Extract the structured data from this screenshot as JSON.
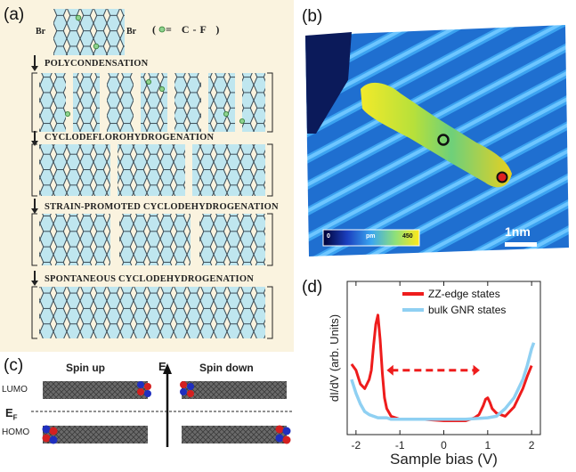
{
  "panel_a": {
    "label": "(a)",
    "br_left": "Br",
    "br_right": "Br",
    "legend": "( = C-F )",
    "steps": [
      "POLYCONDENSATION",
      "CYCLODEFLOROHYDROGENATION",
      "STRAIN-PROMOTED CYCLODEHYDROGENATION",
      "SPONTANEOUS CYCLODEHYDROGENATION"
    ]
  },
  "panel_b": {
    "label": "(b)",
    "colorbar_min": "0",
    "colorbar_unit": "pm",
    "colorbar_max": "450",
    "scalebar": "1nm"
  },
  "panel_c": {
    "label": "(c)",
    "spin_up": "Spin up",
    "spin_down": "Spin down",
    "energy_axis": "E",
    "lumo": "LUMO",
    "fermi": "E",
    "fermi_sub": "F",
    "homo": "HOMO"
  },
  "panel_d": {
    "label": "(d)"
  },
  "chart_data": {
    "type": "line",
    "xlabel": "Sample bias (V)",
    "ylabel": "dI/dV (arb. Units)",
    "xlim": [
      -2.2,
      2.2
    ],
    "ylim": [
      0,
      1
    ],
    "xticks": [
      -2,
      -1,
      0,
      1,
      2
    ],
    "xtick_labels": [
      "-2",
      "-1",
      "0",
      "1",
      "2"
    ],
    "legend_position": "top-right",
    "series": [
      {
        "name": "ZZ-edge states",
        "color": "#ee1c1c",
        "x": [
          -2.1,
          -2.0,
          -1.9,
          -1.8,
          -1.7,
          -1.65,
          -1.6,
          -1.55,
          -1.5,
          -1.45,
          -1.4,
          -1.35,
          -1.3,
          -1.2,
          -1.0,
          -0.8,
          -0.5,
          0.0,
          0.5,
          0.7,
          0.8,
          0.9,
          0.95,
          1.0,
          1.05,
          1.1,
          1.2,
          1.4,
          1.6,
          1.8,
          1.9,
          2.0
        ],
        "y": [
          0.46,
          0.42,
          0.33,
          0.3,
          0.36,
          0.42,
          0.58,
          0.72,
          0.78,
          0.62,
          0.4,
          0.24,
          0.17,
          0.12,
          0.1,
          0.1,
          0.1,
          0.09,
          0.09,
          0.11,
          0.13,
          0.19,
          0.23,
          0.24,
          0.21,
          0.17,
          0.14,
          0.12,
          0.18,
          0.3,
          0.38,
          0.45
        ]
      },
      {
        "name": "bulk GNR states",
        "color": "#8fd0f2",
        "x": [
          -2.1,
          -2.0,
          -1.9,
          -1.8,
          -1.7,
          -1.6,
          -1.5,
          -1.4,
          -1.3,
          -1.2,
          -1.0,
          -0.5,
          0.0,
          0.5,
          1.0,
          1.2,
          1.4,
          1.6,
          1.8,
          1.9,
          2.0,
          2.05
        ],
        "y": [
          0.36,
          0.27,
          0.2,
          0.15,
          0.13,
          0.12,
          0.11,
          0.11,
          0.11,
          0.1,
          0.1,
          0.1,
          0.1,
          0.1,
          0.11,
          0.12,
          0.17,
          0.24,
          0.36,
          0.45,
          0.56,
          0.6
        ]
      }
    ],
    "annotation": "double-headed dashed arrow between edge-state peaks"
  }
}
